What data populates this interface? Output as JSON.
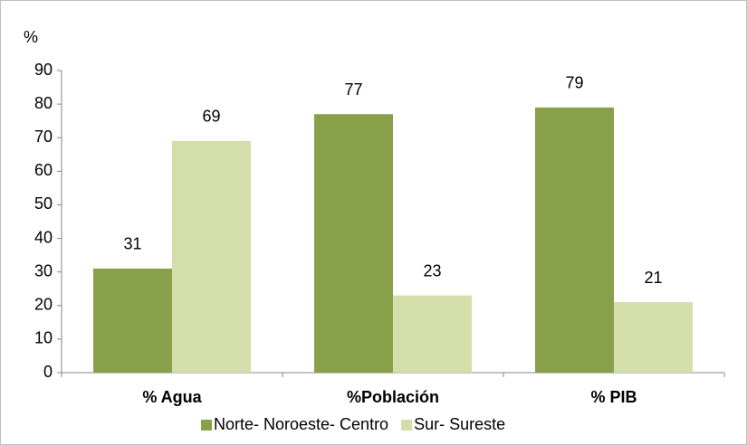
{
  "chart_data": {
    "type": "bar",
    "y_label": "%",
    "categories": [
      "% Agua",
      "%Población",
      "% PIB"
    ],
    "series": [
      {
        "name": "Norte- Noroeste- Centro",
        "color": "#88a04a",
        "values": [
          31,
          77,
          79
        ]
      },
      {
        "name": "Sur- Sureste",
        "color": "#d3deab",
        "values": [
          69,
          23,
          21
        ]
      }
    ],
    "ylim": [
      0,
      90
    ],
    "yticks": [
      0,
      10,
      20,
      30,
      40,
      50,
      60,
      70,
      80,
      90
    ],
    "grid": false
  }
}
